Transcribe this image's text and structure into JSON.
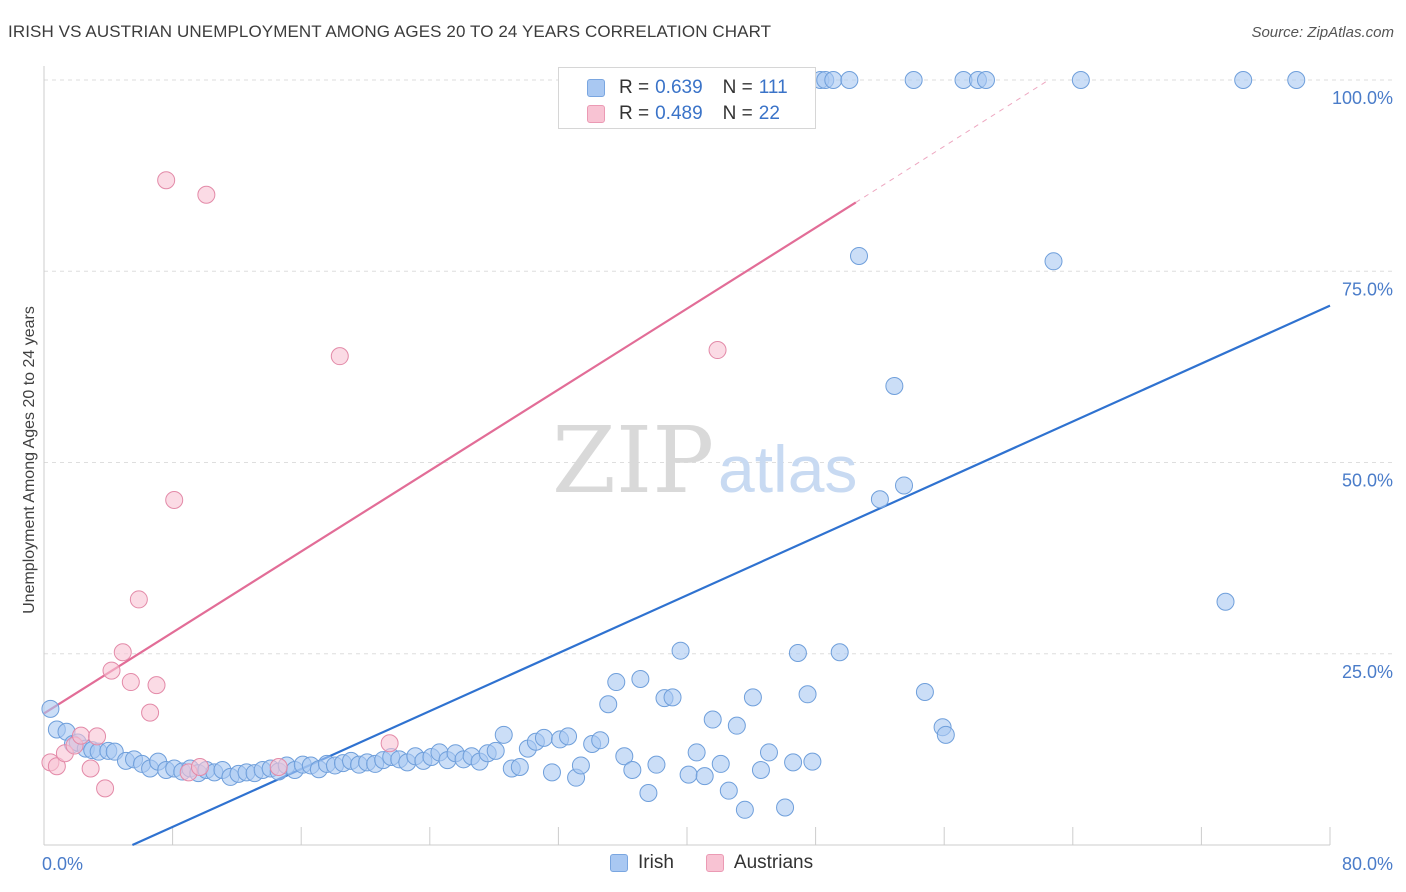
{
  "title": "IRISH VS AUSTRIAN UNEMPLOYMENT AMONG AGES 20 TO 24 YEARS CORRELATION CHART",
  "source": "Source: ZipAtlas.com",
  "watermark": {
    "zip": "ZIP",
    "atlas": "atlas"
  },
  "legend": {
    "items": [
      {
        "r_label": "R = ",
        "r_value": "0.639",
        "n_label": "N = ",
        "n_value": "111",
        "color": "#a9c8f2",
        "border": "#7aa6e0"
      },
      {
        "r_label": "R = ",
        "r_value": "0.489",
        "n_label": "N = ",
        "n_value": "22",
        "color": "#f8c3d3",
        "border": "#eb9ab4"
      }
    ]
  },
  "bottom_legend": [
    {
      "label": "Irish",
      "color": "#a9c8f2",
      "border": "#7aa6e0"
    },
    {
      "label": "Austrians",
      "color": "#f8c3d3",
      "border": "#eb9ab4"
    }
  ],
  "chart_data": {
    "type": "scatter",
    "title": "IRISH VS AUSTRIAN UNEMPLOYMENT AMONG AGES 20 TO 24 YEARS CORRELATION CHART",
    "xlabel": "",
    "ylabel": "Unemployment Among Ages 20 to 24 years",
    "xlim": [
      0,
      80
    ],
    "ylim": [
      0,
      100
    ],
    "x_tick_labels": [
      "0.0%",
      "80.0%"
    ],
    "y_ticks": [
      25,
      50,
      75,
      100
    ],
    "y_tick_labels": [
      "25.0%",
      "50.0%",
      "75.0%",
      "100.0%"
    ],
    "grid": true,
    "series": [
      {
        "name": "Irish",
        "color": "#a9c8f2",
        "stroke": "#6f9fdb",
        "line_color": "#2f72d0",
        "trend": {
          "x": [
            5.5,
            80
          ],
          "y": [
            0,
            70.5
          ]
        },
        "points": [
          [
            0.4,
            17.8
          ],
          [
            0.8,
            15.1
          ],
          [
            1.4,
            14.8
          ],
          [
            1.8,
            13.2
          ],
          [
            2.1,
            13.4
          ],
          [
            2.6,
            12.6
          ],
          [
            3.0,
            12.4
          ],
          [
            3.4,
            12.2
          ],
          [
            4.0,
            12.3
          ],
          [
            4.4,
            12.2
          ],
          [
            5.1,
            11.0
          ],
          [
            5.6,
            11.2
          ],
          [
            6.1,
            10.6
          ],
          [
            6.6,
            10.0
          ],
          [
            7.1,
            10.9
          ],
          [
            7.6,
            9.8
          ],
          [
            8.1,
            10.0
          ],
          [
            8.6,
            9.6
          ],
          [
            9.1,
            10.0
          ],
          [
            9.6,
            9.4
          ],
          [
            10.1,
            9.8
          ],
          [
            10.6,
            9.5
          ],
          [
            11.1,
            9.8
          ],
          [
            11.6,
            8.9
          ],
          [
            12.1,
            9.3
          ],
          [
            12.6,
            9.5
          ],
          [
            13.1,
            9.4
          ],
          [
            13.6,
            9.8
          ],
          [
            14.1,
            10.0
          ],
          [
            14.6,
            9.6
          ],
          [
            15.1,
            10.4
          ],
          [
            15.6,
            9.8
          ],
          [
            16.1,
            10.5
          ],
          [
            16.6,
            10.4
          ],
          [
            17.1,
            9.9
          ],
          [
            17.6,
            10.6
          ],
          [
            18.1,
            10.4
          ],
          [
            18.6,
            10.7
          ],
          [
            19.1,
            11.0
          ],
          [
            19.6,
            10.5
          ],
          [
            20.1,
            10.8
          ],
          [
            20.6,
            10.6
          ],
          [
            21.1,
            11.1
          ],
          [
            21.6,
            11.5
          ],
          [
            22.1,
            11.2
          ],
          [
            22.6,
            10.8
          ],
          [
            23.1,
            11.6
          ],
          [
            23.6,
            11.0
          ],
          [
            24.1,
            11.5
          ],
          [
            24.6,
            12.1
          ],
          [
            25.1,
            11.1
          ],
          [
            25.6,
            12.0
          ],
          [
            26.1,
            11.2
          ],
          [
            26.6,
            11.6
          ],
          [
            27.1,
            10.9
          ],
          [
            27.6,
            12.0
          ],
          [
            28.1,
            12.3
          ],
          [
            28.6,
            14.4
          ],
          [
            29.1,
            10.0
          ],
          [
            29.6,
            10.2
          ],
          [
            30.1,
            12.6
          ],
          [
            30.6,
            13.5
          ],
          [
            31.1,
            14.0
          ],
          [
            31.6,
            9.5
          ],
          [
            32.1,
            13.8
          ],
          [
            32.6,
            14.2
          ],
          [
            33.1,
            8.8
          ],
          [
            33.4,
            10.4
          ],
          [
            34.1,
            13.2
          ],
          [
            34.6,
            13.7
          ],
          [
            35.1,
            18.4
          ],
          [
            35.6,
            21.3
          ],
          [
            36.1,
            11.6
          ],
          [
            36.6,
            9.8
          ],
          [
            37.1,
            21.7
          ],
          [
            37.6,
            6.8
          ],
          [
            38.1,
            10.5
          ],
          [
            38.6,
            19.2
          ],
          [
            39.1,
            19.3
          ],
          [
            39.6,
            25.4
          ],
          [
            40.1,
            9.2
          ],
          [
            40.6,
            12.1
          ],
          [
            41.1,
            9.0
          ],
          [
            41.6,
            16.4
          ],
          [
            42.1,
            10.6
          ],
          [
            42.6,
            7.1
          ],
          [
            43.1,
            15.6
          ],
          [
            43.6,
            4.6
          ],
          [
            44.1,
            19.3
          ],
          [
            44.6,
            9.8
          ],
          [
            45.1,
            12.1
          ],
          [
            46.1,
            4.9
          ],
          [
            46.6,
            10.8
          ],
          [
            46.9,
            25.1
          ],
          [
            47.5,
            19.7
          ],
          [
            47.8,
            10.9
          ],
          [
            48.3,
            100
          ],
          [
            48.6,
            100
          ],
          [
            49.1,
            100
          ],
          [
            49.5,
            25.2
          ],
          [
            50.1,
            100
          ],
          [
            50.7,
            77.0
          ],
          [
            52.0,
            45.2
          ],
          [
            52.9,
            60.0
          ],
          [
            53.5,
            47.0
          ],
          [
            54.1,
            100
          ],
          [
            54.8,
            20.0
          ],
          [
            55.9,
            15.4
          ],
          [
            56.1,
            14.4
          ],
          [
            57.2,
            100
          ],
          [
            58.1,
            100
          ],
          [
            58.6,
            100
          ],
          [
            62.8,
            76.3
          ],
          [
            64.5,
            100
          ],
          [
            73.5,
            31.8
          ],
          [
            74.6,
            100
          ],
          [
            77.9,
            100
          ]
        ]
      },
      {
        "name": "Austrians",
        "color": "#f8c3d3",
        "stroke": "#e38aa8",
        "line_color": "#e26d97",
        "trend": {
          "x": [
            0,
            50.5
          ],
          "y": [
            17.2,
            84
          ]
        },
        "trend_dashed": {
          "x": [
            50.5,
            62.5
          ],
          "y": [
            84,
            100
          ]
        },
        "points": [
          [
            0.4,
            10.8
          ],
          [
            0.8,
            10.3
          ],
          [
            1.3,
            12.0
          ],
          [
            1.9,
            13.0
          ],
          [
            2.3,
            14.3
          ],
          [
            2.9,
            10.0
          ],
          [
            3.3,
            14.2
          ],
          [
            3.8,
            7.4
          ],
          [
            4.2,
            22.8
          ],
          [
            4.9,
            25.2
          ],
          [
            5.4,
            21.3
          ],
          [
            5.9,
            32.1
          ],
          [
            6.6,
            17.3
          ],
          [
            7.0,
            20.9
          ],
          [
            7.6,
            86.9
          ],
          [
            8.1,
            45.1
          ],
          [
            9.0,
            9.5
          ],
          [
            10.1,
            85.0
          ],
          [
            9.7,
            10.2
          ],
          [
            14.6,
            10.2
          ],
          [
            18.4,
            63.9
          ],
          [
            21.5,
            13.3
          ],
          [
            41.9,
            64.7
          ]
        ]
      }
    ]
  }
}
